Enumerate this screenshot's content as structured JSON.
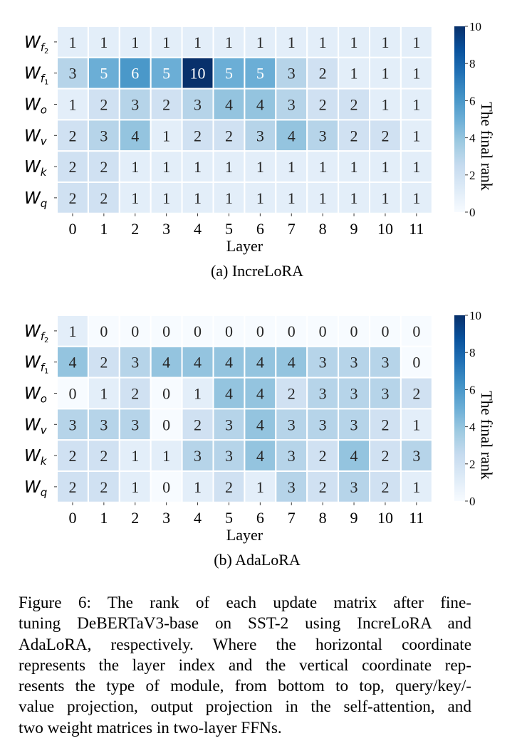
{
  "chart_data": [
    {
      "type": "heatmap",
      "caption": "(a) IncreLoRA",
      "xlabel": "Layer",
      "x_ticks": [
        "0",
        "1",
        "2",
        "3",
        "4",
        "5",
        "6",
        "7",
        "8",
        "9",
        "10",
        "11"
      ],
      "y_ticks": [
        {
          "base": "W",
          "sub": "f",
          "subsub": "2"
        },
        {
          "base": "W",
          "sub": "f",
          "subsub": "1"
        },
        {
          "base": "W",
          "sub": "o"
        },
        {
          "base": "W",
          "sub": "v"
        },
        {
          "base": "W",
          "sub": "k"
        },
        {
          "base": "W",
          "sub": "q"
        }
      ],
      "values": [
        [
          1,
          1,
          1,
          1,
          1,
          1,
          1,
          1,
          1,
          1,
          1,
          1
        ],
        [
          3,
          5,
          6,
          5,
          10,
          5,
          5,
          3,
          2,
          1,
          1,
          1
        ],
        [
          1,
          2,
          3,
          2,
          3,
          4,
          4,
          3,
          2,
          2,
          1,
          1
        ],
        [
          2,
          3,
          4,
          1,
          2,
          2,
          3,
          4,
          3,
          2,
          2,
          1
        ],
        [
          2,
          2,
          1,
          1,
          1,
          1,
          1,
          1,
          1,
          1,
          1,
          1
        ],
        [
          2,
          2,
          1,
          1,
          1,
          1,
          1,
          1,
          1,
          1,
          1,
          1
        ]
      ],
      "colorbar": {
        "label": "The final rank",
        "range": [
          0,
          10
        ],
        "ticks": [
          "0",
          "2",
          "4",
          "6",
          "8",
          "10"
        ]
      }
    },
    {
      "type": "heatmap",
      "caption": "(b) AdaLoRA",
      "xlabel": "Layer",
      "x_ticks": [
        "0",
        "1",
        "2",
        "3",
        "4",
        "5",
        "6",
        "7",
        "8",
        "9",
        "10",
        "11"
      ],
      "y_ticks": [
        {
          "base": "W",
          "sub": "f",
          "subsub": "2"
        },
        {
          "base": "W",
          "sub": "f",
          "subsub": "1"
        },
        {
          "base": "W",
          "sub": "o"
        },
        {
          "base": "W",
          "sub": "v"
        },
        {
          "base": "W",
          "sub": "k"
        },
        {
          "base": "W",
          "sub": "q"
        }
      ],
      "values": [
        [
          1,
          0,
          0,
          0,
          0,
          0,
          0,
          0,
          0,
          0,
          0,
          0
        ],
        [
          4,
          2,
          3,
          4,
          4,
          4,
          4,
          4,
          3,
          3,
          3,
          0
        ],
        [
          0,
          1,
          2,
          0,
          1,
          4,
          4,
          2,
          3,
          3,
          3,
          2
        ],
        [
          3,
          3,
          3,
          0,
          2,
          3,
          4,
          3,
          3,
          3,
          2,
          1
        ],
        [
          2,
          2,
          1,
          1,
          3,
          3,
          4,
          3,
          2,
          4,
          2,
          3
        ],
        [
          2,
          2,
          1,
          0,
          1,
          2,
          1,
          3,
          2,
          3,
          2,
          1
        ]
      ],
      "colorbar": {
        "label": "The final rank",
        "range": [
          0,
          10
        ],
        "ticks": [
          "0",
          "2",
          "4",
          "6",
          "8",
          "10"
        ]
      }
    }
  ],
  "caption_lines": [
    "Figure 6: The rank of each update matrix after fine-",
    "tuning DeBERTaV3-base on SST-2 using IncreLoRA and",
    "AdaLoRA, respectively. Where the horizontal coordinate",
    "represents the layer index and the vertical coordinate rep-",
    "resents the type of module, from bottom to top, query/key/-",
    "value projection, output projection in the self-attention, and",
    "two weight matrices in two-layer FFNs."
  ],
  "colors": {
    "colormap_low": "#f7fbff",
    "colormap_high": "#08306b",
    "cell_border": "#ffffff"
  }
}
